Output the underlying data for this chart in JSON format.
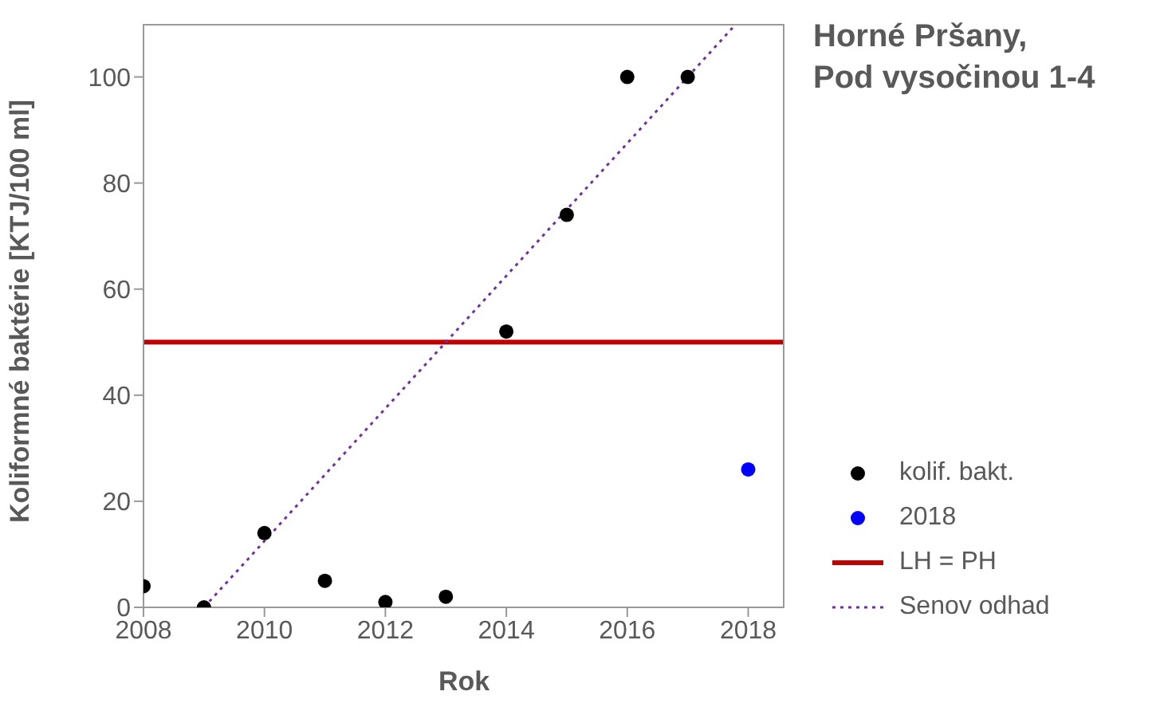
{
  "chart_data": {
    "type": "scatter",
    "title": "Horné Pršany,\nPod vysočinou 1-4",
    "xlabel": "Rok",
    "ylabel": "Koliformné baktérie [KTJ/100 ml]",
    "xlim": [
      2008,
      2018.6
    ],
    "xticks": [
      2008,
      2010,
      2012,
      2014,
      2016,
      2018
    ],
    "ylim": [
      0,
      110
    ],
    "yticks": [
      0,
      20,
      40,
      60,
      80,
      100
    ],
    "legend": "right",
    "series": [
      {
        "name": "kolif. bakt.",
        "marker": "circle",
        "color": "#000000",
        "x": [
          2008,
          2009,
          2010,
          2011,
          2012,
          2013,
          2014,
          2015,
          2016,
          2017
        ],
        "values": [
          4,
          0,
          14,
          5,
          1,
          2,
          52,
          74,
          100,
          100
        ]
      },
      {
        "name": "2018",
        "marker": "circle",
        "color": "#0000ff",
        "x": [
          2018
        ],
        "values": [
          26
        ]
      },
      {
        "name": "Senov odhad",
        "type": "line",
        "marker": "none",
        "line_style": "dotted",
        "color": "#7030a0",
        "x": [
          2009,
          2017.8
        ],
        "values": [
          0,
          110
        ]
      }
    ],
    "ref_lines": [
      {
        "axis": "y",
        "value": 50,
        "label": "LH = PH",
        "color": "#c00000"
      }
    ]
  }
}
